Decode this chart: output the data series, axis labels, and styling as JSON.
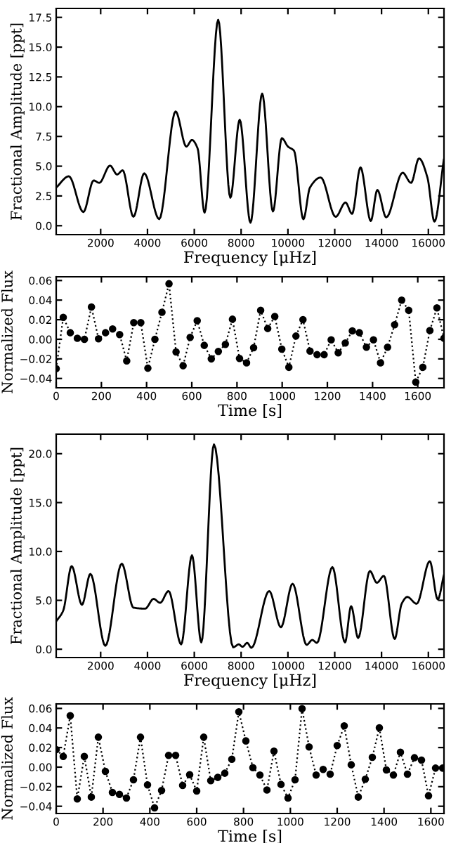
{
  "chart_data": [
    {
      "type": "line",
      "xlabel": "Frequency [μHz]",
      "ylabel": "Fractional Amplitude [ppt]",
      "marker": "none",
      "line_style": "solid",
      "grid": false,
      "xlim": [
        100,
        16667
      ],
      "ylim": [
        -0.75,
        18.25
      ],
      "xticks": [
        2000,
        4000,
        6000,
        8000,
        10000,
        12000,
        14000,
        16000
      ],
      "yticks": [
        {
          "value": 0,
          "label": "0.0"
        },
        {
          "value": 2.5,
          "label": "2.5"
        },
        {
          "value": 5,
          "label": "5.0"
        },
        {
          "value": 7.5,
          "label": "7.5"
        },
        {
          "value": 10,
          "label": "10.0"
        },
        {
          "value": 12.5,
          "label": "12.5"
        },
        {
          "value": 15,
          "label": "15.0"
        },
        {
          "value": 17.5,
          "label": "17.5"
        }
      ],
      "series": [
        {
          "color": "#000000",
          "x": [
            100,
            640,
            1260,
            1700,
            1940,
            2400,
            2700,
            2940,
            3400,
            3860,
            4500,
            5200,
            5660,
            5900,
            6140,
            6440,
            7020,
            7540,
            7940,
            8400,
            8900,
            9360,
            9740,
            10000,
            10260,
            10660,
            10940,
            11400,
            12040,
            12460,
            12740,
            13100,
            13540,
            13820,
            14200,
            14900,
            15260,
            15600,
            15960,
            16260,
            16660
          ],
          "values": [
            3.2,
            4.15,
            1.15,
            3.8,
            3.6,
            5.05,
            4.3,
            4.65,
            0.75,
            4.4,
            0.55,
            9.6,
            6.65,
            7.2,
            6.5,
            1.1,
            17.3,
            2.35,
            8.9,
            0.25,
            11.1,
            1.2,
            7.35,
            6.65,
            6.3,
            0.55,
            3.2,
            4.05,
            0.75,
            1.95,
            1.0,
            4.9,
            0.4,
            3.0,
            0.7,
            4.45,
            3.6,
            5.65,
            4.05,
            0.35,
            5.55
          ]
        }
      ]
    },
    {
      "type": "line",
      "xlabel": "Time [s]",
      "ylabel": "Normalized Flux",
      "marker": "circle",
      "line_style": "dotted",
      "grid": false,
      "xlim": [
        0,
        1716
      ],
      "ylim": [
        -0.0495,
        0.0638
      ],
      "xticks": [
        0,
        200,
        400,
        600,
        800,
        1000,
        1200,
        1400,
        1600
      ],
      "yticks": [
        {
          "value": -0.04,
          "label": "−0.04"
        },
        {
          "value": -0.02,
          "label": "−0.02"
        },
        {
          "value": 0,
          "label": "0.00"
        },
        {
          "value": 0.02,
          "label": "0.02"
        },
        {
          "value": 0.04,
          "label": "0.04"
        },
        {
          "value": 0.06,
          "label": "0.06"
        }
      ],
      "series": [
        {
          "color": "#000000",
          "x": [
            0,
            31.2,
            62.4,
            93.6,
            124.8,
            156,
            187.2,
            218.4,
            249.6,
            280.8,
            312,
            343.2,
            374.4,
            405.6,
            436.8,
            468,
            499.2,
            530.4,
            561.6,
            592.8,
            624,
            655.2,
            686.4,
            717.6,
            748.8,
            780,
            811.2,
            842.4,
            873.6,
            904.8,
            936,
            967.2,
            998.4,
            1029.6,
            1060.8,
            1092,
            1123.2,
            1154.4,
            1185.6,
            1216.8,
            1248,
            1279.2,
            1310.4,
            1341.6,
            1372.8,
            1404,
            1435.2,
            1466.4,
            1497.6,
            1528.8,
            1560,
            1591.2,
            1622.4,
            1653.6,
            1684.8,
            1716
          ],
          "values": [
            -0.03,
            0.0224,
            0.0067,
            0.001,
            0.0,
            0.033,
            0.0005,
            0.0067,
            0.0105,
            0.0048,
            -0.022,
            0.017,
            0.017,
            -0.0295,
            0.0,
            0.0276,
            0.0567,
            -0.0129,
            -0.027,
            0.002,
            0.019,
            -0.0062,
            -0.02,
            -0.0124,
            -0.0052,
            0.0205,
            -0.0195,
            -0.024,
            -0.0086,
            0.0295,
            0.011,
            0.0233,
            -0.01,
            -0.0286,
            0.0033,
            0.02,
            -0.012,
            -0.0157,
            -0.0157,
            -0.0005,
            -0.0138,
            -0.0038,
            0.0086,
            0.0067,
            -0.0081,
            -0.0005,
            -0.024,
            -0.0081,
            0.0148,
            0.04,
            0.0295,
            -0.0438,
            -0.0286,
            0.009,
            0.032,
            0.001
          ]
        }
      ]
    },
    {
      "type": "line",
      "xlabel": "Frequency [μHz]",
      "ylabel": "Fractional Amplitude [ppt]",
      "marker": "none",
      "line_style": "solid",
      "grid": false,
      "xlim": [
        100,
        16667
      ],
      "ylim": [
        -0.85,
        22.0
      ],
      "xticks": [
        2000,
        4000,
        6000,
        8000,
        10000,
        12000,
        14000,
        16000
      ],
      "yticks": [
        {
          "value": 0,
          "label": "0.0"
        },
        {
          "value": 5,
          "label": "5.0"
        },
        {
          "value": 10,
          "label": "10.0"
        },
        {
          "value": 15,
          "label": "15.0"
        },
        {
          "value": 20,
          "label": "20.0"
        }
      ],
      "series": [
        {
          "color": "#000000",
          "x": [
            100,
            400,
            760,
            1200,
            1560,
            2200,
            2900,
            3400,
            3900,
            4260,
            4540,
            4900,
            5440,
            5900,
            6300,
            6840,
            7660,
            7900,
            8060,
            8260,
            8440,
            9200,
            9700,
            10200,
            10800,
            11040,
            11240,
            11900,
            12440,
            12700,
            13000,
            13500,
            13800,
            14100,
            14560,
            14860,
            15100,
            15500,
            16060,
            16400,
            16660
          ],
          "values": [
            2.85,
            3.95,
            8.5,
            4.55,
            7.7,
            0.35,
            8.75,
            4.25,
            4.15,
            5.15,
            4.75,
            5.95,
            0.5,
            9.6,
            0.7,
            20.95,
            0.2,
            0.5,
            0.25,
            0.65,
            0.15,
            5.95,
            2.25,
            6.7,
            0.45,
            0.95,
            0.65,
            8.4,
            0.7,
            4.4,
            1.15,
            8.0,
            6.8,
            7.5,
            1.05,
            4.65,
            5.35,
            4.65,
            9.0,
            5.1,
            7.55
          ]
        }
      ]
    },
    {
      "type": "line",
      "xlabel": "Time [s]",
      "ylabel": "Normalized Flux",
      "marker": "circle",
      "line_style": "dotted",
      "grid": false,
      "xlim": [
        0,
        1656
      ],
      "ylim": [
        -0.0474,
        0.0646
      ],
      "xticks": [
        0,
        200,
        400,
        600,
        800,
        1000,
        1200,
        1400,
        1600
      ],
      "yticks": [
        {
          "value": -0.04,
          "label": "−0.04"
        },
        {
          "value": -0.02,
          "label": "−0.02"
        },
        {
          "value": 0,
          "label": "0.00"
        },
        {
          "value": 0.02,
          "label": "0.02"
        },
        {
          "value": 0.04,
          "label": "0.04"
        },
        {
          "value": 0.06,
          "label": "0.06"
        }
      ],
      "series": [
        {
          "color": "#000000",
          "x": [
            0,
            30,
            60,
            90,
            120,
            150,
            180,
            210,
            240,
            270,
            300,
            330,
            360,
            390,
            420,
            450,
            480,
            510,
            540,
            570,
            600,
            630,
            660,
            690,
            720,
            750,
            780,
            810,
            840,
            870,
            900,
            930,
            960,
            990,
            1020,
            1050,
            1080,
            1110,
            1140,
            1170,
            1200,
            1230,
            1260,
            1290,
            1320,
            1350,
            1380,
            1410,
            1440,
            1470,
            1500,
            1530,
            1560,
            1590,
            1620,
            1650
          ],
          "values": [
            0.018,
            0.011,
            0.0526,
            -0.0325,
            0.011,
            -0.0306,
            0.0306,
            -0.0043,
            -0.0258,
            -0.0278,
            -0.0316,
            -0.0129,
            0.0306,
            -0.0182,
            -0.0416,
            -0.0239,
            0.012,
            0.012,
            -0.0187,
            -0.0077,
            -0.0244,
            0.0306,
            -0.0139,
            -0.0105,
            -0.0062,
            0.0081,
            0.0565,
            0.0268,
            -0.0005,
            -0.0081,
            -0.0234,
            0.0163,
            -0.0177,
            -0.0316,
            -0.0129,
            0.0597,
            0.0206,
            -0.0081,
            -0.0024,
            -0.0072,
            0.022,
            0.0421,
            0.0024,
            -0.0306,
            -0.0124,
            0.01,
            0.0402,
            -0.0029,
            -0.0081,
            0.0153,
            -0.0072,
            0.0096,
            0.0072,
            -0.0292,
            -0.001,
            -0.001
          ]
        }
      ]
    }
  ]
}
